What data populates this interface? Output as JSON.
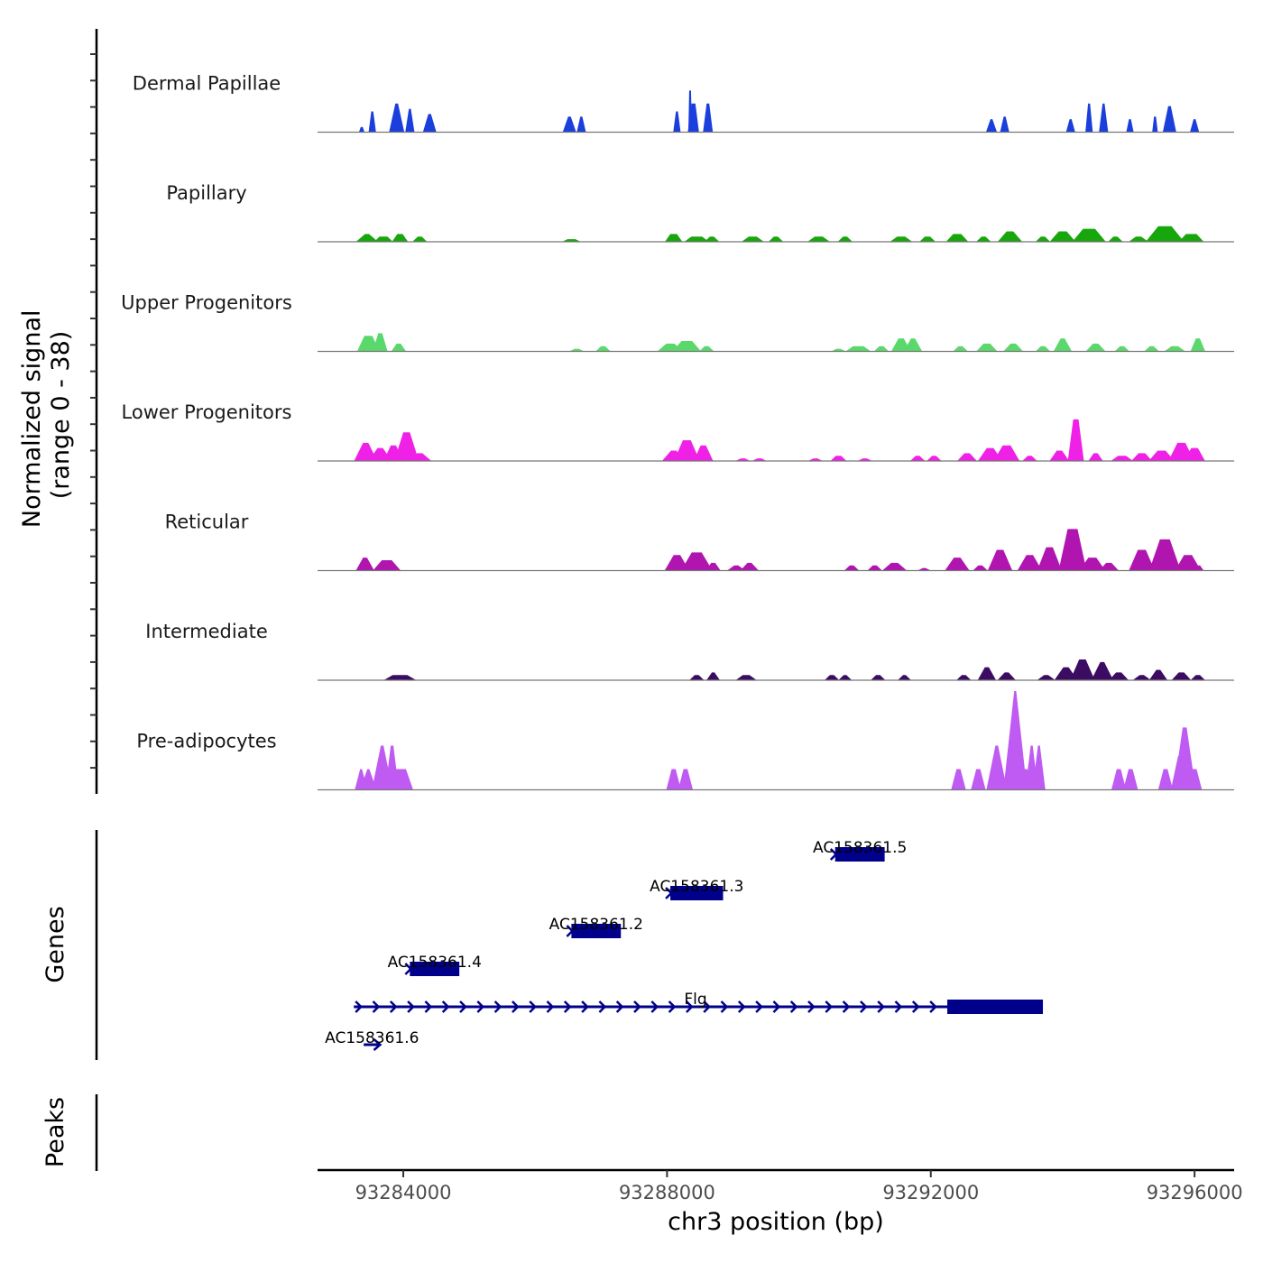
{
  "chart_data": {
    "type": "area",
    "title": "",
    "ylabel": "Normalized signal\n(range 0 - 38)",
    "ylabel_lines": [
      "Normalized signal",
      "(range 0 - 38)"
    ],
    "ylim": [
      0,
      38
    ],
    "xlabel": "chr3 position (bp)",
    "xlim": [
      93282700,
      93296600
    ],
    "xticks": [
      93284000,
      93288000,
      93292000,
      93296000
    ],
    "xtick_labels": [
      "93284000",
      "93288000",
      "93292000",
      "93296000"
    ],
    "grid": false,
    "tracks": [
      {
        "name": "Dermal Papillae",
        "color": "#1a3fdc",
        "peaks": [
          [
            93283370,
            30,
            2,
            2
          ],
          [
            93283530,
            30,
            3,
            8
          ],
          [
            93283900,
            40,
            7,
            11
          ],
          [
            93284100,
            30,
            4,
            9
          ],
          [
            93284400,
            40,
            6,
            7
          ],
          [
            93286520,
            40,
            6,
            6
          ],
          [
            93286700,
            30,
            4,
            6
          ],
          [
            93288150,
            30,
            3,
            8
          ],
          [
            93288400,
            60,
            4,
            11
          ],
          [
            93288350,
            20,
            1,
            16
          ],
          [
            93288620,
            40,
            4,
            11
          ],
          [
            93292920,
            30,
            5,
            5
          ],
          [
            93293120,
            30,
            4,
            6
          ],
          [
            93294120,
            30,
            4,
            5
          ],
          [
            93294400,
            30,
            3,
            11
          ],
          [
            93294620,
            30,
            4,
            11
          ],
          [
            93295020,
            30,
            3,
            5
          ],
          [
            93295400,
            30,
            2,
            6
          ],
          [
            93295620,
            40,
            6,
            10
          ],
          [
            93296000,
            30,
            4,
            5
          ]
        ]
      },
      {
        "name": "Papillary",
        "color": "#17a60b",
        "peaks": [
          [
            93283450,
            60,
            10,
            3
          ],
          [
            93283700,
            120,
            6,
            2
          ],
          [
            93283950,
            80,
            6,
            3
          ],
          [
            93284250,
            60,
            6,
            2
          ],
          [
            93286550,
            120,
            6,
            1
          ],
          [
            93288100,
            100,
            6,
            3
          ],
          [
            93288450,
            160,
            8,
            2
          ],
          [
            93288680,
            60,
            6,
            2
          ],
          [
            93289300,
            120,
            8,
            2
          ],
          [
            93289650,
            60,
            6,
            2
          ],
          [
            93290300,
            120,
            8,
            2
          ],
          [
            93290700,
            60,
            6,
            2
          ],
          [
            93291550,
            120,
            8,
            2
          ],
          [
            93291950,
            80,
            6,
            2
          ],
          [
            93292400,
            120,
            8,
            3
          ],
          [
            93292800,
            60,
            6,
            2
          ],
          [
            93293200,
            100,
            10,
            4
          ],
          [
            93293700,
            60,
            6,
            2
          ],
          [
            93294000,
            120,
            10,
            4
          ],
          [
            93294400,
            180,
            12,
            5
          ],
          [
            93294800,
            60,
            6,
            2
          ],
          [
            93295150,
            80,
            8,
            2
          ],
          [
            93295550,
            200,
            14,
            6
          ],
          [
            93295950,
            160,
            8,
            3
          ]
        ]
      },
      {
        "name": "Upper Progenitors",
        "color": "#5ad86b",
        "peaks": [
          [
            93283470,
            120,
            8,
            6
          ],
          [
            93283650,
            60,
            6,
            7
          ],
          [
            93283930,
            60,
            6,
            3
          ],
          [
            93286630,
            60,
            6,
            1
          ],
          [
            93287030,
            60,
            6,
            2
          ],
          [
            93288050,
            120,
            10,
            3
          ],
          [
            93288300,
            160,
            10,
            4
          ],
          [
            93288600,
            60,
            6,
            2
          ],
          [
            93290600,
            60,
            6,
            1
          ],
          [
            93290900,
            160,
            8,
            2
          ],
          [
            93291250,
            60,
            6,
            2
          ],
          [
            93291550,
            80,
            8,
            5
          ],
          [
            93291730,
            60,
            8,
            5
          ],
          [
            93292450,
            60,
            6,
            2
          ],
          [
            93292850,
            100,
            8,
            3
          ],
          [
            93293250,
            80,
            8,
            3
          ],
          [
            93293700,
            60,
            6,
            2
          ],
          [
            93294000,
            60,
            8,
            5
          ],
          [
            93294500,
            80,
            8,
            3
          ],
          [
            93294900,
            60,
            6,
            2
          ],
          [
            93295350,
            60,
            6,
            2
          ],
          [
            93295700,
            100,
            8,
            2
          ],
          [
            93296050,
            60,
            6,
            5
          ]
        ]
      },
      {
        "name": "Lower Progenitors",
        "color": "#f021e6",
        "peaks": [
          [
            93283430,
            80,
            10,
            7
          ],
          [
            93283650,
            80,
            10,
            5
          ],
          [
            93283850,
            80,
            8,
            6
          ],
          [
            93284050,
            100,
            10,
            11
          ],
          [
            93284250,
            80,
            10,
            3
          ],
          [
            93288100,
            80,
            10,
            4
          ],
          [
            93288300,
            120,
            10,
            8
          ],
          [
            93288550,
            80,
            8,
            6
          ],
          [
            93289150,
            60,
            6,
            1
          ],
          [
            93289400,
            60,
            6,
            1
          ],
          [
            93290250,
            60,
            6,
            1
          ],
          [
            93290600,
            80,
            6,
            2
          ],
          [
            93291000,
            60,
            6,
            1
          ],
          [
            93291800,
            60,
            6,
            2
          ],
          [
            93292050,
            60,
            6,
            2
          ],
          [
            93292550,
            80,
            8,
            3
          ],
          [
            93292900,
            100,
            10,
            5
          ],
          [
            93293150,
            120,
            10,
            6
          ],
          [
            93293500,
            60,
            6,
            2
          ],
          [
            93293950,
            80,
            8,
            4
          ],
          [
            93294200,
            80,
            6,
            16
          ],
          [
            93294500,
            60,
            6,
            3
          ],
          [
            93294900,
            120,
            8,
            2
          ],
          [
            93295200,
            100,
            8,
            3
          ],
          [
            93295500,
            120,
            10,
            4
          ],
          [
            93295800,
            120,
            10,
            7
          ],
          [
            93296000,
            100,
            8,
            5
          ]
        ]
      },
      {
        "name": "Reticular",
        "color": "#b015b0",
        "peaks": [
          [
            93283420,
            60,
            8,
            5
          ],
          [
            93283750,
            150,
            10,
            4
          ],
          [
            93288150,
            100,
            10,
            6
          ],
          [
            93288450,
            150,
            12,
            7
          ],
          [
            93288700,
            60,
            6,
            3
          ],
          [
            93289050,
            60,
            8,
            2
          ],
          [
            93289250,
            60,
            8,
            3
          ],
          [
            93290800,
            60,
            6,
            2
          ],
          [
            93291150,
            60,
            6,
            2
          ],
          [
            93291450,
            100,
            10,
            3
          ],
          [
            93291900,
            40,
            6,
            1
          ],
          [
            93292400,
            100,
            10,
            5
          ],
          [
            93292750,
            60,
            6,
            2
          ],
          [
            93293050,
            100,
            10,
            8
          ],
          [
            93293500,
            100,
            10,
            6
          ],
          [
            93293800,
            100,
            10,
            9
          ],
          [
            93294150,
            150,
            10,
            16
          ],
          [
            93294450,
            120,
            10,
            5
          ],
          [
            93294700,
            80,
            8,
            3
          ],
          [
            93295200,
            120,
            10,
            8
          ],
          [
            93295550,
            150,
            12,
            12
          ],
          [
            93295900,
            120,
            10,
            6
          ],
          [
            93296070,
            20,
            4,
            2
          ]
        ]
      },
      {
        "name": "Intermediate",
        "color": "#3b0c61",
        "peaks": [
          [
            93283950,
            220,
            10,
            2
          ],
          [
            93288450,
            60,
            6,
            2
          ],
          [
            93288700,
            40,
            6,
            3
          ],
          [
            93289200,
            100,
            8,
            2
          ],
          [
            93290500,
            60,
            6,
            2
          ],
          [
            93290700,
            40,
            6,
            2
          ],
          [
            93291200,
            60,
            6,
            2
          ],
          [
            93291600,
            40,
            6,
            2
          ],
          [
            93292500,
            60,
            6,
            2
          ],
          [
            93292850,
            60,
            8,
            5
          ],
          [
            93293150,
            60,
            8,
            3
          ],
          [
            93293750,
            60,
            8,
            2
          ],
          [
            93294050,
            80,
            10,
            5
          ],
          [
            93294300,
            100,
            10,
            8
          ],
          [
            93294600,
            60,
            10,
            7
          ],
          [
            93294850,
            80,
            8,
            3
          ],
          [
            93295200,
            60,
            8,
            2
          ],
          [
            93295450,
            60,
            8,
            4
          ],
          [
            93295800,
            80,
            8,
            3
          ],
          [
            93296050,
            60,
            6,
            2
          ]
        ]
      },
      {
        "name": "Pre-adipocytes",
        "color": "#bf5af2",
        "peaks": [
          [
            93283360,
            10,
            6,
            8
          ],
          [
            93283470,
            30,
            8,
            8
          ],
          [
            93283680,
            40,
            10,
            17
          ],
          [
            93283830,
            40,
            6,
            17
          ],
          [
            93283950,
            180,
            8,
            8
          ],
          [
            93288100,
            60,
            6,
            8
          ],
          [
            93288280,
            60,
            6,
            8
          ],
          [
            93292420,
            60,
            6,
            8
          ],
          [
            93292720,
            60,
            6,
            8
          ],
          [
            93293000,
            40,
            10,
            17
          ],
          [
            93293280,
            30,
            12,
            38
          ],
          [
            93293350,
            220,
            10,
            8
          ],
          [
            93293530,
            30,
            6,
            17
          ],
          [
            93293640,
            30,
            6,
            17
          ],
          [
            93294850,
            60,
            6,
            8
          ],
          [
            93295030,
            60,
            6,
            8
          ],
          [
            93295560,
            60,
            6,
            8
          ],
          [
            93295850,
            60,
            10,
            24
          ],
          [
            93295770,
            40,
            8,
            13
          ],
          [
            93296000,
            60,
            6,
            8
          ]
        ]
      }
    ]
  },
  "genes": {
    "label": "Genes",
    "color": "#00008b",
    "items": [
      {
        "name": "AC158361.5",
        "start": 93290550,
        "end": 93291300,
        "strand": "+",
        "row": 0
      },
      {
        "name": "AC158361.3",
        "start": 93288050,
        "end": 93288850,
        "strand": "+",
        "row": 1
      },
      {
        "name": "AC158361.2",
        "start": 93286550,
        "end": 93287300,
        "strand": "+",
        "row": 2
      },
      {
        "name": "AC158361.4",
        "start": 93284100,
        "end": 93284850,
        "strand": "+",
        "row": 3
      },
      {
        "name": "Flg",
        "start": 93283250,
        "end": 93293700,
        "strand": "+",
        "row": 4,
        "exon_start": 93292250,
        "exon_end": 93293700
      },
      {
        "name": "AC158361.6",
        "start": 93283400,
        "end": 93283650,
        "strand": "+",
        "row": 5
      }
    ]
  },
  "peaks_track": {
    "label": "Peaks"
  }
}
